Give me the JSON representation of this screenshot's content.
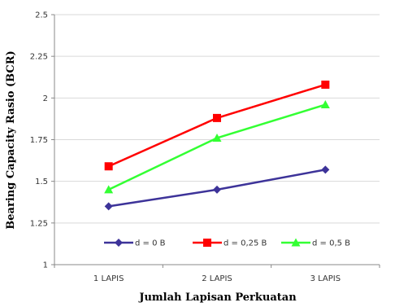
{
  "chart_data": {
    "type": "line",
    "title": "",
    "xlabel": "Jumlah Lapisan Perkuatan",
    "ylabel": "Bearing Capacity  Rasio (BCR)",
    "categories": [
      "1 LAPIS",
      "2 LAPIS",
      "3 LAPIS"
    ],
    "yticks": [
      "1",
      "1.25",
      "1.5",
      "1.75",
      "2",
      "2.25",
      "2.5"
    ],
    "ylim": [
      1,
      2.5
    ],
    "grid": "horizontal",
    "legend_position": "bottom-inside",
    "series": [
      {
        "name": "d = 0 B",
        "values": [
          1.35,
          1.45,
          1.57
        ],
        "color": "#3d3399",
        "marker": "diamond"
      },
      {
        "name": "d = 0,25  B",
        "values": [
          1.59,
          1.88,
          2.08
        ],
        "color": "#ff0000",
        "marker": "square"
      },
      {
        "name": "d = 0,5 B",
        "values": [
          1.45,
          1.76,
          1.96
        ],
        "color": "#33ff33",
        "marker": "triangle"
      }
    ]
  }
}
